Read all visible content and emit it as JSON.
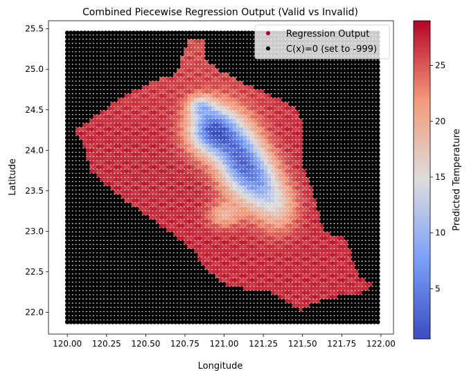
{
  "chart_data": {
    "type": "scatter",
    "title": "Combined Piecewise Regression Output (Valid vs Invalid)",
    "xlabel": "Longitude",
    "ylabel": "Latitude",
    "xlim": [
      119.88,
      122.08
    ],
    "ylim": [
      21.73,
      25.6
    ],
    "xticks": [
      "120.00",
      "120.25",
      "120.50",
      "120.75",
      "121.00",
      "121.25",
      "121.50",
      "121.75",
      "122.00"
    ],
    "yticks": [
      "22.0",
      "22.5",
      "23.0",
      "23.5",
      "24.0",
      "24.5",
      "25.0",
      "25.5"
    ],
    "grid": false,
    "legend_position": "top-right",
    "series": [
      {
        "name": "Regression Output",
        "marker_color": "#b40426",
        "value_range": [
          0.5,
          29
        ]
      },
      {
        "name": "C(x)=0 (set to -999)",
        "marker_color": "#000000",
        "value": -999
      }
    ],
    "grid_points": {
      "x_start": 120.0,
      "x_end": 121.98,
      "x_count": 90,
      "y_start": 21.88,
      "y_end": 25.45,
      "y_count": 70
    },
    "valid_region_outline": [
      [
        120.77,
        25.37
      ],
      [
        120.87,
        25.37
      ],
      [
        120.89,
        25.12
      ],
      [
        120.98,
        24.98
      ],
      [
        121.1,
        24.86
      ],
      [
        121.22,
        24.75
      ],
      [
        121.35,
        24.64
      ],
      [
        121.48,
        24.5
      ],
      [
        121.5,
        24.28
      ],
      [
        121.5,
        23.85
      ],
      [
        121.56,
        23.57
      ],
      [
        121.6,
        23.25
      ],
      [
        121.64,
        23.0
      ],
      [
        121.78,
        22.9
      ],
      [
        121.82,
        22.65
      ],
      [
        121.86,
        22.45
      ],
      [
        121.96,
        22.33
      ],
      [
        121.86,
        22.23
      ],
      [
        121.7,
        22.18
      ],
      [
        121.56,
        22.12
      ],
      [
        121.49,
        22.02
      ],
      [
        121.42,
        22.1
      ],
      [
        121.28,
        22.26
      ],
      [
        121.15,
        22.28
      ],
      [
        121.0,
        22.35
      ],
      [
        120.88,
        22.55
      ],
      [
        120.8,
        22.78
      ],
      [
        120.68,
        22.95
      ],
      [
        120.5,
        23.2
      ],
      [
        120.3,
        23.48
      ],
      [
        120.15,
        23.75
      ],
      [
        120.1,
        24.08
      ],
      [
        120.04,
        24.25
      ],
      [
        120.15,
        24.38
      ],
      [
        120.29,
        24.58
      ],
      [
        120.41,
        24.72
      ],
      [
        120.55,
        24.85
      ],
      [
        120.7,
        24.95
      ]
    ],
    "cool_cores": [
      [
        120.93,
        24.25,
        0.15,
        0.3,
        24
      ],
      [
        121.1,
        23.9,
        0.14,
        0.4,
        20
      ],
      [
        121.23,
        23.6,
        0.13,
        0.35,
        14
      ],
      [
        121.35,
        23.3,
        0.12,
        0.3,
        8
      ],
      [
        120.85,
        24.55,
        0.08,
        0.12,
        10
      ],
      [
        121.0,
        23.2,
        0.1,
        0.15,
        7
      ]
    ],
    "colorbar": {
      "label": "Predicted Temperature",
      "min": 0.5,
      "max": 29,
      "ticks": [
        "5",
        "10",
        "15",
        "20",
        "25"
      ],
      "colormap": "coolwarm"
    }
  }
}
